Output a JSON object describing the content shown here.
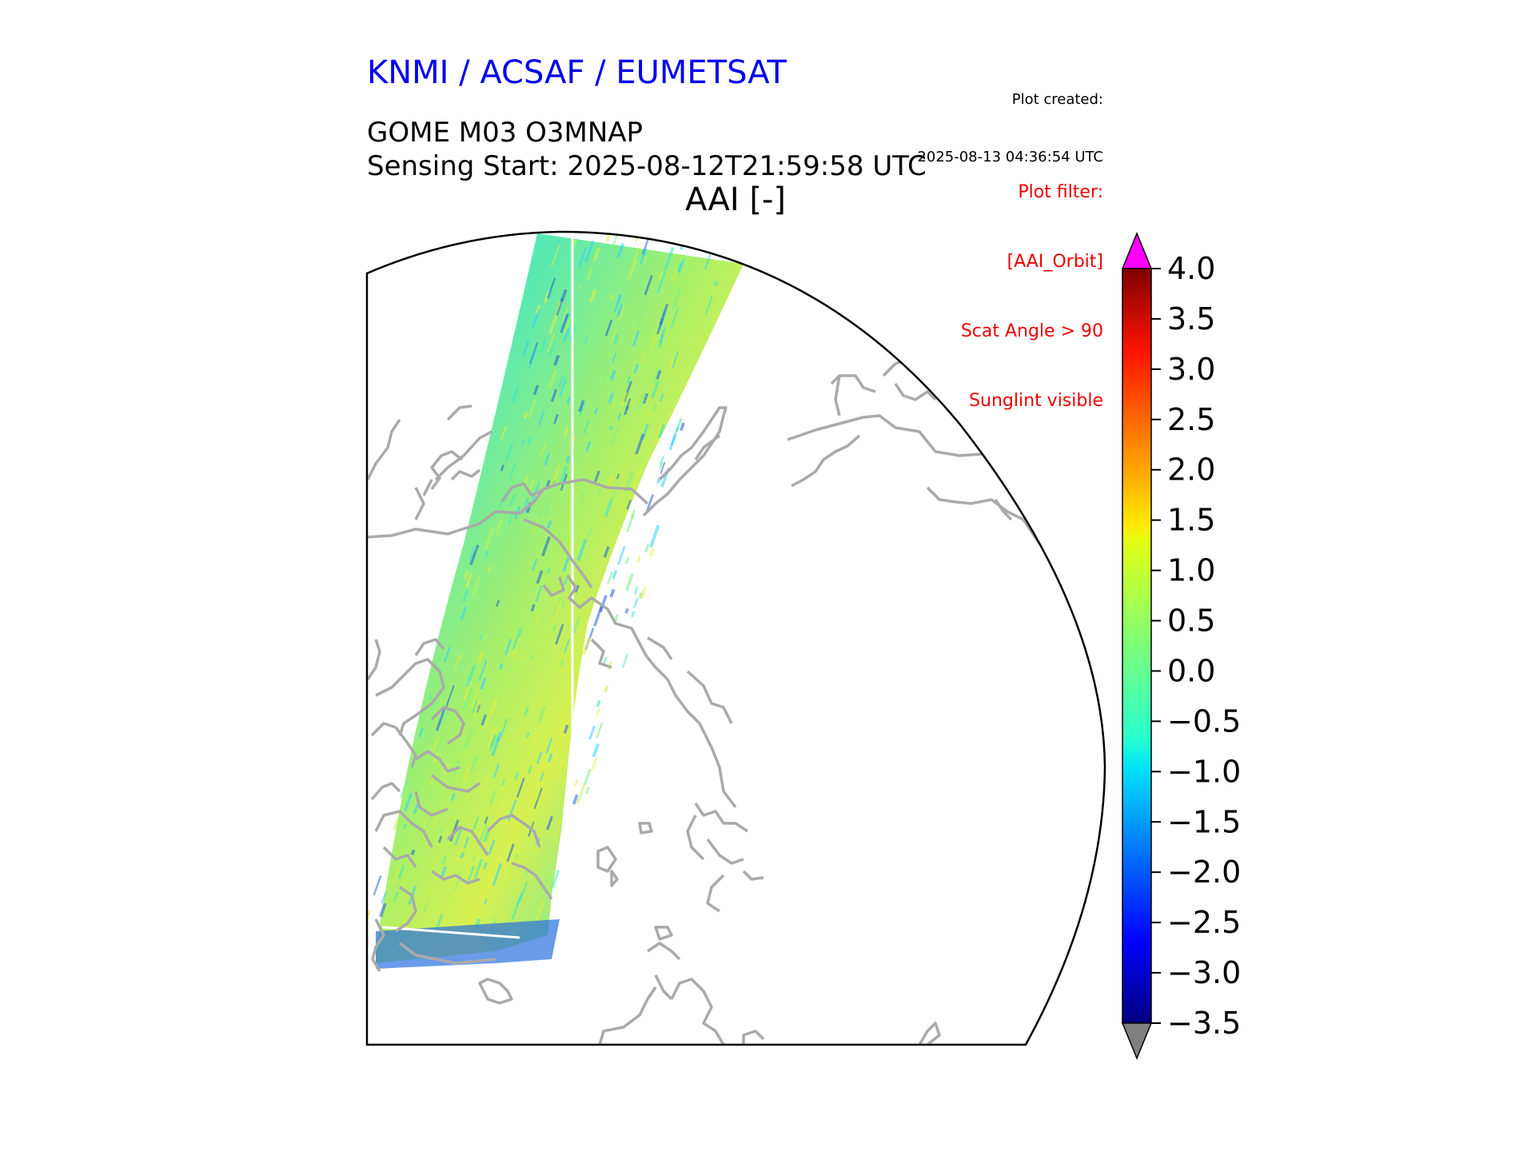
{
  "header": {
    "organisations": "KNMI / ACSAF / EUMETSAT",
    "plot_created_label": "Plot created:",
    "plot_created_time": "2025-08-13 04:36:54 UTC",
    "product": "GOME M03 O3MNAP",
    "sensing_start": "Sensing Start: 2025-08-12T21:59:58 UTC",
    "variable_title": "AAI [-]"
  },
  "plot_filter": {
    "lines": [
      "Plot filter:",
      "[AAI_Orbit]",
      "Scat Angle > 90",
      "Sunglint visible"
    ]
  },
  "colorbar": {
    "label_min": "−3.5",
    "label_max": "4.0",
    "ticks": [
      "4.0",
      "3.5",
      "3.0",
      "2.5",
      "2.0",
      "1.5",
      "1.0",
      "0.5",
      "0.0",
      "−0.5",
      "−1.0",
      "−1.5",
      "−2.0",
      "−2.5",
      "−3.0",
      "−3.5"
    ],
    "tick_values": [
      4.0,
      3.5,
      3.0,
      2.5,
      2.0,
      1.5,
      1.0,
      0.5,
      0.0,
      -0.5,
      -1.0,
      -1.5,
      -2.0,
      -2.5,
      -3.0,
      -3.5
    ],
    "colormap": "jet",
    "over_color": "#ff00ff",
    "under_color": "#808080"
  },
  "map": {
    "projection": "north polar stereographic",
    "coastline_color": "#aaaaaa",
    "frame_color": "#000000",
    "swath_colors": [
      "#30d0ff",
      "#3ae8c8",
      "#7cf08a",
      "#c8f24a",
      "#e8ee40",
      "#2060e0"
    ]
  }
}
